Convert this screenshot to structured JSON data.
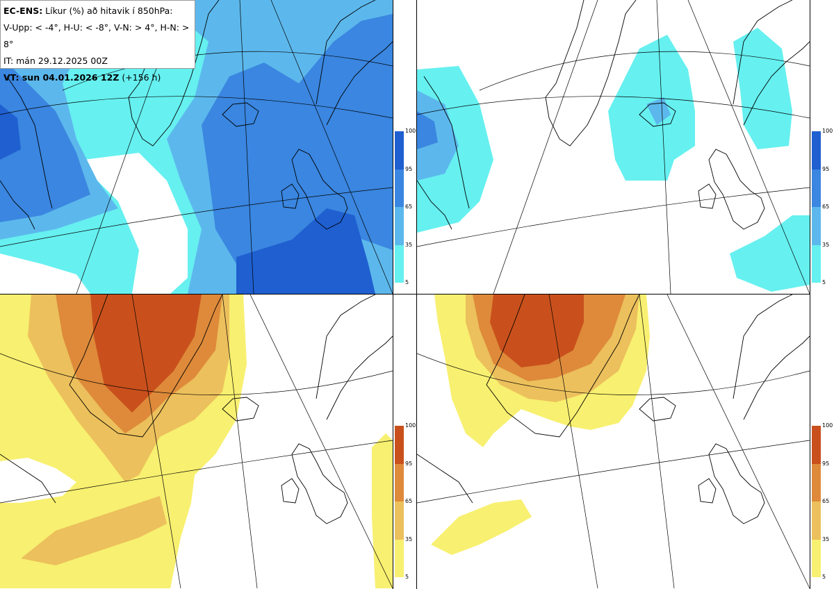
{
  "header": {
    "line1_bold": "EC-ENS:",
    "line1_rest": " Líkur (%) að hitavik í 850hPa:",
    "line2": "V-Upp: < -4°, H-U: < -8°, V-N: > 4°, H-N: > 8°",
    "line3": "IT: mán 29.12.2025 00Z",
    "line4_bold": "VT: sun 04.01.2026 12Z",
    "line4_rest": " (+156 h)"
  },
  "colorbar": {
    "ticks": [
      "100",
      "95",
      "65",
      "35",
      "5"
    ],
    "cold_colors": [
      "#1f5fd0",
      "#3a86e0",
      "#5cb8ec",
      "#66f0f0"
    ],
    "warm_colors": [
      "#c9501c",
      "#de8a3a",
      "#ecc05c",
      "#f8f070"
    ]
  },
  "panels": [
    {
      "id": "top-left",
      "variable": "V-Upp"
    },
    {
      "id": "top-right",
      "variable": "H-U"
    },
    {
      "id": "bottom-left",
      "variable": "V-N"
    },
    {
      "id": "bottom-right",
      "variable": "H-N"
    }
  ]
}
